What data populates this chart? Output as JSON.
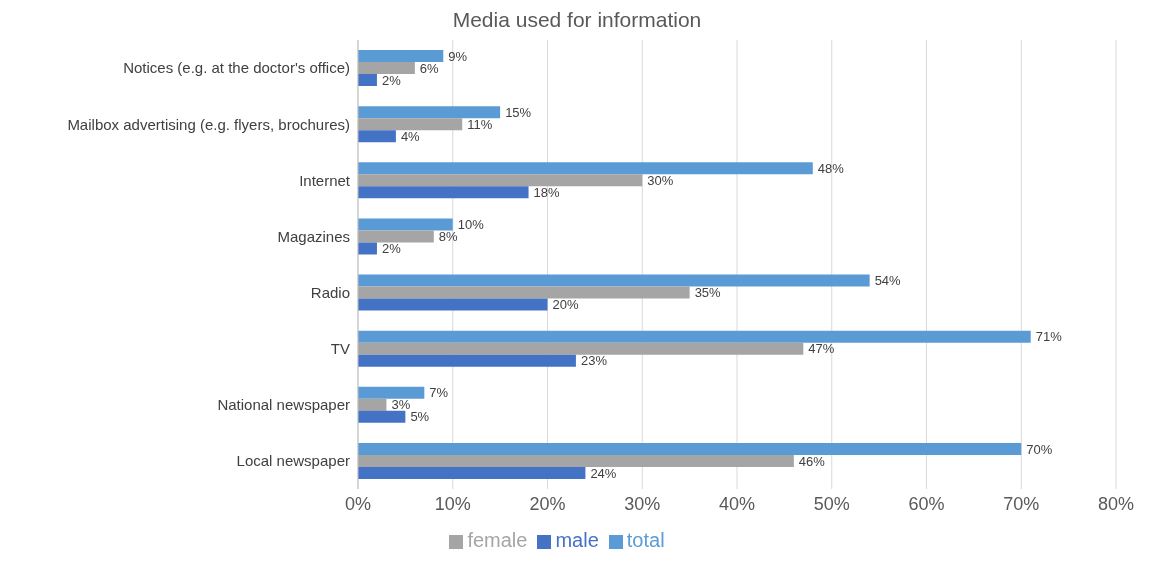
{
  "chart_data": {
    "type": "bar",
    "orientation": "horizontal",
    "title": "Media used for information",
    "categories": [
      "Notices (e.g. at the doctor's office)",
      "Mailbox advertising (e.g. flyers, brochures)",
      "Internet",
      "Magazines",
      "Radio",
      "TV",
      "National newspaper",
      "Local newspaper"
    ],
    "series": [
      {
        "name": "total",
        "color": "#5b9bd5",
        "values": [
          9,
          15,
          48,
          10,
          54,
          71,
          7,
          70
        ],
        "value_labels": [
          "9%",
          "15%",
          "48%",
          "10%",
          "54%",
          "71%",
          "7%",
          "70%"
        ]
      },
      {
        "name": "female",
        "color": "#a5a5a5",
        "values": [
          6,
          11,
          30,
          8,
          35,
          47,
          3,
          46
        ],
        "value_labels": [
          "6%",
          "11%",
          "30%",
          "8%",
          "35%",
          "47%",
          "3%",
          "46%"
        ]
      },
      {
        "name": "male",
        "color": "#4472c4",
        "values": [
          2,
          4,
          18,
          2,
          20,
          23,
          5,
          24
        ],
        "value_labels": [
          "2%",
          "4%",
          "18%",
          "2%",
          "20%",
          "23%",
          "5%",
          "24%"
        ]
      }
    ],
    "xlim": [
      0,
      80
    ],
    "xticks": [
      {
        "value": 0,
        "label": "0%"
      },
      {
        "value": 10,
        "label": "10%"
      },
      {
        "value": 20,
        "label": "20%"
      },
      {
        "value": 30,
        "label": "30%"
      },
      {
        "value": 40,
        "label": "40%"
      },
      {
        "value": 50,
        "label": "50%"
      },
      {
        "value": 60,
        "label": "60%"
      },
      {
        "value": 70,
        "label": "70%"
      },
      {
        "value": 80,
        "label": "80%"
      }
    ],
    "grid": "x",
    "legend": "bottom"
  }
}
